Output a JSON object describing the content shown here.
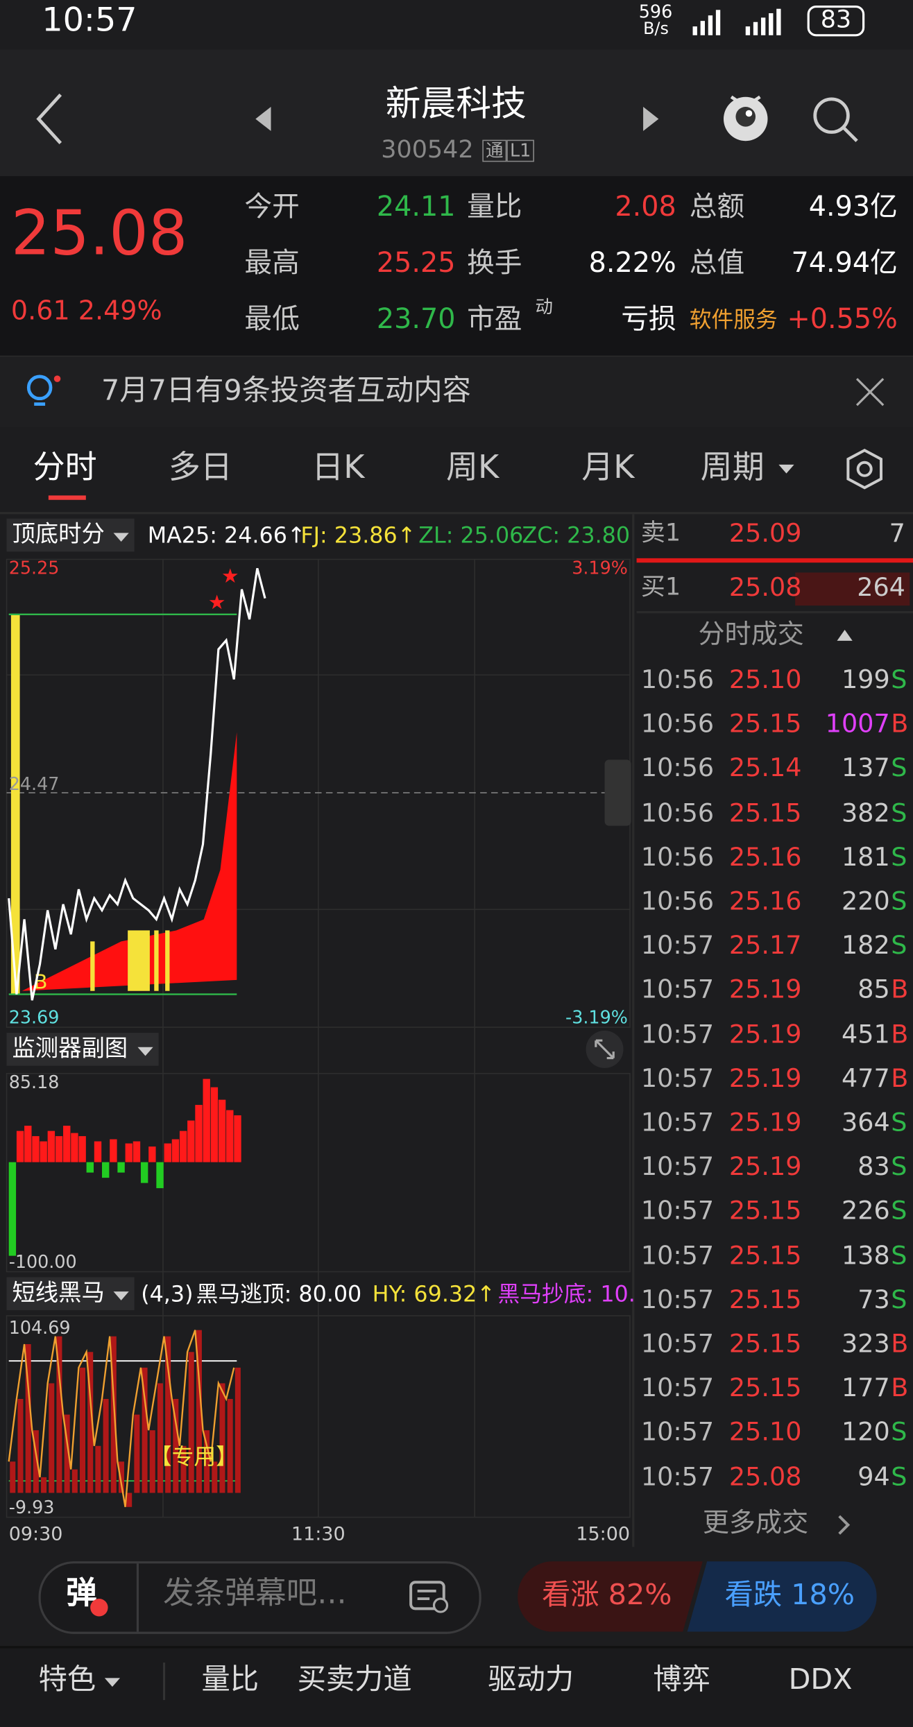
{
  "status": {
    "time": "10:57",
    "speed": "596",
    "speed_unit": "B/s",
    "battery": "83"
  },
  "header": {
    "title": "新晨科技",
    "code": "300542",
    "badges": [
      "通",
      "L1"
    ]
  },
  "quote": {
    "price": "25.08",
    "change": "0.61",
    "pct": "2.49%",
    "rows": [
      [
        {
          "label": "今开",
          "value": "24.11",
          "color": "#2fb84a"
        },
        {
          "label": "量比",
          "value": "2.08",
          "color": "#f03a3a"
        },
        {
          "label": "总额",
          "value": "4.93亿",
          "color": "#ffffff"
        }
      ],
      [
        {
          "label": "最高",
          "value": "25.25",
          "color": "#f03a3a"
        },
        {
          "label": "换手",
          "value": "8.22%",
          "color": "#ffffff"
        },
        {
          "label": "总值",
          "value": "74.94亿",
          "color": "#ffffff"
        }
      ],
      [
        {
          "label": "最低",
          "value": "23.70",
          "color": "#2fb84a"
        },
        {
          "label": "市盈",
          "sup": "动",
          "value": "亏损",
          "color": "#ffffff"
        },
        {
          "label": "软件服务",
          "value": "+0.55%",
          "color": "#f03a3a"
        }
      ]
    ]
  },
  "notice": "7月7日有9条投资者互动内容",
  "tabs": [
    "分时",
    "多日",
    "日K",
    "周K",
    "月K",
    "周期"
  ],
  "indicator": {
    "name": "顶底时分",
    "items": [
      {
        "text": "MA25: 24.66↑",
        "color": "#ffffff"
      },
      {
        "text": "FJ: 23.86↑",
        "color": "#f5e23a"
      },
      {
        "text": "ZL: 25.06",
        "color": "#2fb84a"
      },
      {
        "text": "ZC: 23.80",
        "color": "#2fb84a"
      }
    ]
  },
  "price_chart": {
    "top": 25.25,
    "mid": 24.47,
    "bottom": 23.69,
    "top_pct": "3.19%",
    "bottom_pct": "-3.19%",
    "values": [
      24.12,
      23.8,
      24.05,
      23.78,
      23.9,
      24.08,
      23.95,
      24.1,
      24.0,
      24.15,
      24.05,
      24.12,
      24.08,
      24.13,
      24.1,
      24.18,
      24.12,
      24.1,
      24.08,
      24.05,
      24.12,
      24.05,
      24.15,
      24.1,
      24.18,
      24.3,
      24.6,
      24.95,
      24.98,
      24.85,
      25.15,
      25.05,
      25.22,
      25.12
    ],
    "color": "#ffffff"
  },
  "monitor": {
    "name": "监测器副图",
    "top": 85.18,
    "bottom": {
      "value": -100,
      "label": "-100.00"
    },
    "values": [
      -90,
      30,
      35,
      25,
      20,
      30,
      25,
      35,
      28,
      25,
      -10,
      20,
      -15,
      22,
      -10,
      18,
      20,
      -20,
      15,
      -25,
      18,
      22,
      30,
      40,
      55,
      80,
      72,
      60,
      50,
      45
    ],
    "up_color": "#ff1a1a",
    "down_color": "#22cc22"
  },
  "horse": {
    "name": "短线黑马",
    "params": "(4,3)",
    "items": [
      {
        "text": "黑马逃顶: 80.00",
        "color": "#ffffff"
      },
      {
        "text": "HY: 69.32↑",
        "color": "#f5e23a"
      },
      {
        "text": "黑马抄底: 10.",
        "color": "#e040fb"
      }
    ],
    "top": 104.69,
    "bottom": -9.93,
    "tag": "【专用】",
    "values": [
      20,
      60,
      95,
      40,
      10,
      70,
      100,
      50,
      15,
      80,
      90,
      30,
      60,
      100,
      20,
      -9,
      50,
      80,
      40,
      70,
      100,
      60,
      30,
      90,
      104,
      40,
      20,
      70,
      60,
      80
    ],
    "color": "#f0a030"
  },
  "time_axis": [
    "09:30",
    "11:30",
    "15:00"
  ],
  "book": {
    "ask": {
      "label": "卖1",
      "price": "25.09",
      "vol": "7"
    },
    "bid": {
      "label": "买1",
      "price": "25.08",
      "vol": "264"
    }
  },
  "trades_title": "分时成交",
  "trades": [
    {
      "time": "10:56",
      "price": "25.10",
      "vol": "199",
      "side": "S"
    },
    {
      "time": "10:56",
      "price": "25.15",
      "vol": "1007",
      "side": "B"
    },
    {
      "time": "10:56",
      "price": "25.14",
      "vol": "137",
      "side": "S"
    },
    {
      "time": "10:56",
      "price": "25.15",
      "vol": "382",
      "side": "S"
    },
    {
      "time": "10:56",
      "price": "25.16",
      "vol": "181",
      "side": "S"
    },
    {
      "time": "10:56",
      "price": "25.16",
      "vol": "220",
      "side": "S"
    },
    {
      "time": "10:57",
      "price": "25.17",
      "vol": "182",
      "side": "S"
    },
    {
      "time": "10:57",
      "price": "25.19",
      "vol": "85",
      "side": "B"
    },
    {
      "time": "10:57",
      "price": "25.19",
      "vol": "451",
      "side": "B"
    },
    {
      "time": "10:57",
      "price": "25.19",
      "vol": "477",
      "side": "B"
    },
    {
      "time": "10:57",
      "price": "25.19",
      "vol": "364",
      "side": "S"
    },
    {
      "time": "10:57",
      "price": "25.19",
      "vol": "83",
      "side": "S"
    },
    {
      "time": "10:57",
      "price": "25.15",
      "vol": "226",
      "side": "S"
    },
    {
      "time": "10:57",
      "price": "25.15",
      "vol": "138",
      "side": "S"
    },
    {
      "time": "10:57",
      "price": "25.15",
      "vol": "73",
      "side": "S"
    },
    {
      "time": "10:57",
      "price": "25.15",
      "vol": "323",
      "side": "B"
    },
    {
      "time": "10:57",
      "price": "25.15",
      "vol": "177",
      "side": "B"
    },
    {
      "time": "10:57",
      "price": "25.10",
      "vol": "120",
      "side": "S"
    },
    {
      "time": "10:57",
      "price": "25.08",
      "vol": "94",
      "side": "S"
    }
  ],
  "more_trades": "更多成交",
  "danmaku": {
    "icon": "弹",
    "placeholder": "发条弹幕吧..."
  },
  "vote": {
    "up": "看涨 82%",
    "down": "看跌 18%"
  },
  "nav": [
    "特色",
    "量比",
    "买卖力道",
    "驱动力",
    "博弈",
    "DDX"
  ]
}
